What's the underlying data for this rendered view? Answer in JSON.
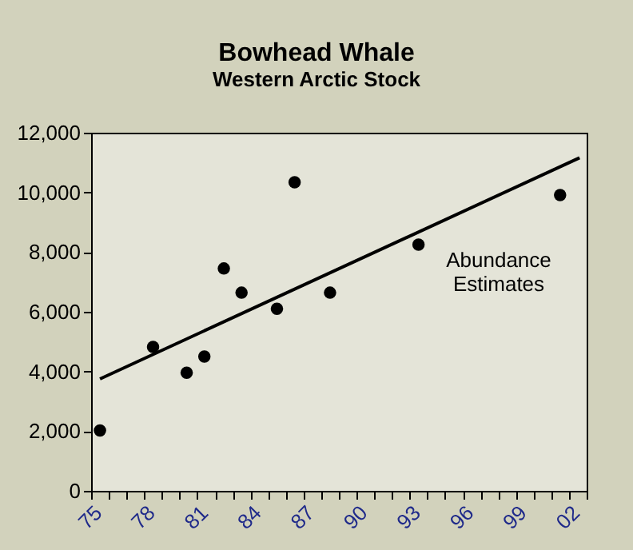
{
  "chart_data": {
    "type": "scatter",
    "title": "Bowhead Whale",
    "subtitle": "Western Arctic Stock",
    "annotations": [
      "Abundance\nEstimates"
    ],
    "series": [
      {
        "color": "#000000",
        "marker": "circle",
        "x": [
          1975.5,
          1978.5,
          1980.4,
          1981.4,
          1982.5,
          1983.5,
          1985.5,
          1986.5,
          1988.5,
          1993.5,
          2001.5
        ],
        "values": [
          2020,
          4820,
          3960,
          4500,
          7450,
          6640,
          6100,
          10340,
          6640,
          8250,
          9910
        ]
      },
      {
        "type": "line",
        "color": "#000000",
        "line_style": "solid",
        "x": [
          1975.5,
          2002.6
        ],
        "values": [
          3750,
          11160
        ]
      }
    ],
    "xlim": [
      1975,
      2003
    ],
    "xticks": [
      {
        "value": 1975,
        "label": "75"
      },
      {
        "value": 1976,
        "label": null
      },
      {
        "value": 1977,
        "label": null
      },
      {
        "value": 1978,
        "label": "78"
      },
      {
        "value": 1979,
        "label": null
      },
      {
        "value": 1980,
        "label": null
      },
      {
        "value": 1981,
        "label": "81"
      },
      {
        "value": 1982,
        "label": null
      },
      {
        "value": 1983,
        "label": null
      },
      {
        "value": 1984,
        "label": "84"
      },
      {
        "value": 1985,
        "label": null
      },
      {
        "value": 1986,
        "label": null
      },
      {
        "value": 1987,
        "label": "87"
      },
      {
        "value": 1988,
        "label": null
      },
      {
        "value": 1989,
        "label": null
      },
      {
        "value": 1990,
        "label": "90"
      },
      {
        "value": 1991,
        "label": null
      },
      {
        "value": 1992,
        "label": null
      },
      {
        "value": 1993,
        "label": "93"
      },
      {
        "value": 1994,
        "label": null
      },
      {
        "value": 1995,
        "label": null
      },
      {
        "value": 1996,
        "label": "96"
      },
      {
        "value": 1997,
        "label": null
      },
      {
        "value": 1998,
        "label": null
      },
      {
        "value": 1999,
        "label": "99"
      },
      {
        "value": 2000,
        "label": null
      },
      {
        "value": 2001,
        "label": null
      },
      {
        "value": 2002,
        "label": "02"
      },
      {
        "value": 2003,
        "label": null
      }
    ],
    "ylim": [
      0,
      12000
    ],
    "yticks": [
      {
        "value": 0,
        "label": "0"
      },
      {
        "value": 2000,
        "label": "2,000"
      },
      {
        "value": 4000,
        "label": "4,000"
      },
      {
        "value": 6000,
        "label": "6,000"
      },
      {
        "value": 8000,
        "label": "8,000"
      },
      {
        "value": 10000,
        "label": "10,000"
      },
      {
        "value": 12000,
        "label": "12,000"
      }
    ],
    "grid": false
  }
}
